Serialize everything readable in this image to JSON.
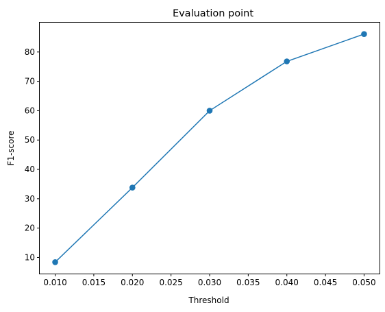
{
  "chart_data": {
    "type": "line",
    "title": "Evaluation point",
    "xlabel": "Threshold",
    "ylabel": "F1-score",
    "x": [
      0.01,
      0.02,
      0.03,
      0.04,
      0.05
    ],
    "series": [
      {
        "values": [
          8.4,
          33.8,
          60.0,
          76.8,
          86.1
        ]
      }
    ],
    "xlim": [
      0.008,
      0.052
    ],
    "ylim": [
      4.5,
      90.0
    ],
    "xticks": [
      "0.010",
      "0.015",
      "0.020",
      "0.025",
      "0.030",
      "0.035",
      "0.040",
      "0.045",
      "0.050"
    ],
    "xtick_values": [
      0.01,
      0.015,
      0.02,
      0.025,
      0.03,
      0.035,
      0.04,
      0.045,
      0.05
    ],
    "yticks": [
      "10",
      "20",
      "30",
      "40",
      "50",
      "60",
      "70",
      "80"
    ],
    "ytick_values": [
      10,
      20,
      30,
      40,
      50,
      60,
      70,
      80
    ],
    "grid": false,
    "markers": true,
    "line_color": "#1f77b4"
  }
}
